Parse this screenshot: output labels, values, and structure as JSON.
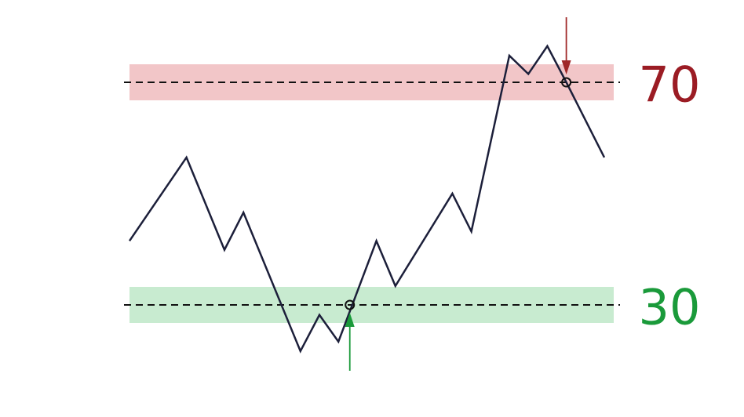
{
  "chart_data": {
    "type": "line",
    "x": [
      0,
      3,
      5,
      6,
      9,
      10,
      11,
      13,
      14,
      17,
      18,
      20,
      21,
      22,
      23,
      25
    ],
    "series": [
      {
        "color": "#1c1f3a",
        "values": [
          41.5,
          56.5,
          39.9,
          46.6,
          21.7,
          28.2,
          23.4,
          41.5,
          33.4,
          50,
          43.2,
          74.8,
          71.5,
          76.5,
          70,
          56.5
        ]
      }
    ],
    "xlim": [
      0,
      25
    ],
    "ylim": [
      15,
      85
    ],
    "levels": [
      {
        "value": 70,
        "label": "70",
        "color": "#9b1c24",
        "band_color": "#f2c6c8"
      },
      {
        "value": 30,
        "label": "30",
        "color": "#1a9a3a",
        "band_color": "#c8ebd0"
      }
    ],
    "signals": [
      {
        "x": 11.6,
        "value": 30,
        "color": "#1a9a3a",
        "direction": "up"
      },
      {
        "x": 23,
        "value": 70,
        "color": "#a02828",
        "direction": "down"
      }
    ]
  }
}
